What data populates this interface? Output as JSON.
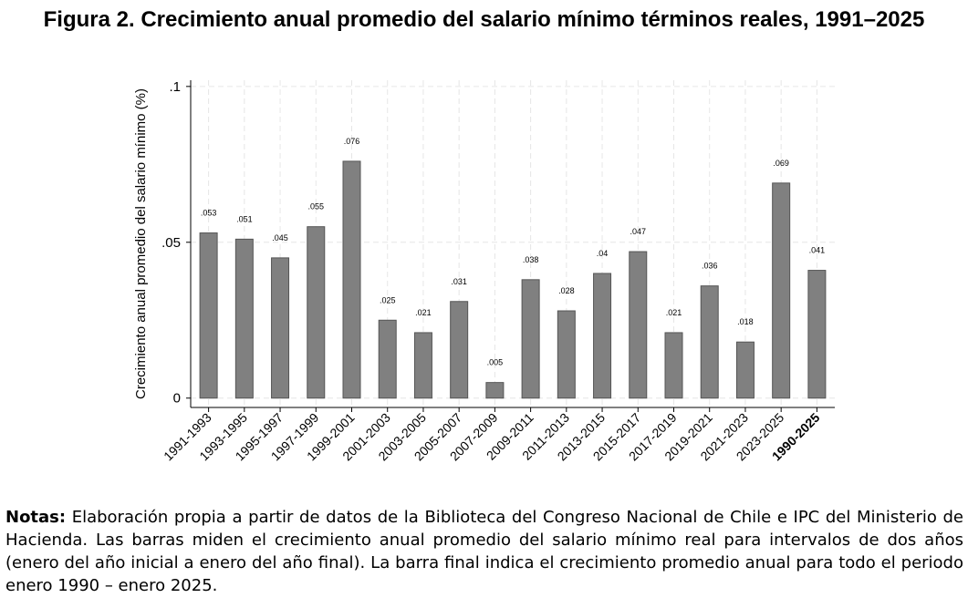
{
  "chart_data": {
    "type": "bar",
    "title": "Figura 2. Crecimiento anual promedio del salario mínimo términos reales, 1991–2025",
    "y_label": "Crecimiento anual promedio del salario mínimo (%)",
    "categories": [
      "1991-1993",
      "1993-1995",
      "1995-1997",
      "1997-1999",
      "1999-2001",
      "2001-2003",
      "2003-2005",
      "2005-2007",
      "2007-2009",
      "2009-2011",
      "2011-2013",
      "2013-2015",
      "2015-2017",
      "2017-2019",
      "2019-2021",
      "2021-2023",
      "2023-2025",
      "1990-2025"
    ],
    "values": [
      0.053,
      0.051,
      0.045,
      0.055,
      0.076,
      0.025,
      0.021,
      0.031,
      0.005,
      0.038,
      0.028,
      0.04,
      0.047,
      0.021,
      0.036,
      0.018,
      0.069,
      0.041
    ],
    "value_labels": [
      ".053",
      ".051",
      ".045",
      ".055",
      ".076",
      ".025",
      ".021",
      ".031",
      ".005",
      ".038",
      ".028",
      ".04",
      ".047",
      ".021",
      ".036",
      ".018",
      ".069",
      ".041"
    ],
    "color": "#808080",
    "ylim": [
      -0.003,
      0.102
    ],
    "yticks": [
      0,
      {
        "value": 0.05,
        "label": ".05"
      },
      {
        "value": 0.1,
        "label": ".1"
      }
    ],
    "grid": true,
    "notes_label": "Notas:",
    "notes": "Elaboración propia a partir de datos de la Biblioteca del Congreso Nacional de Chile e IPC del Ministerio de Hacienda. Las barras miden el crecimiento anual promedio del salario mínimo real para intervalos de dos años (enero del año inicial a enero del año final). La barra final indica el crecimiento promedio anual para todo el periodo enero 1990 – enero 2025."
  }
}
